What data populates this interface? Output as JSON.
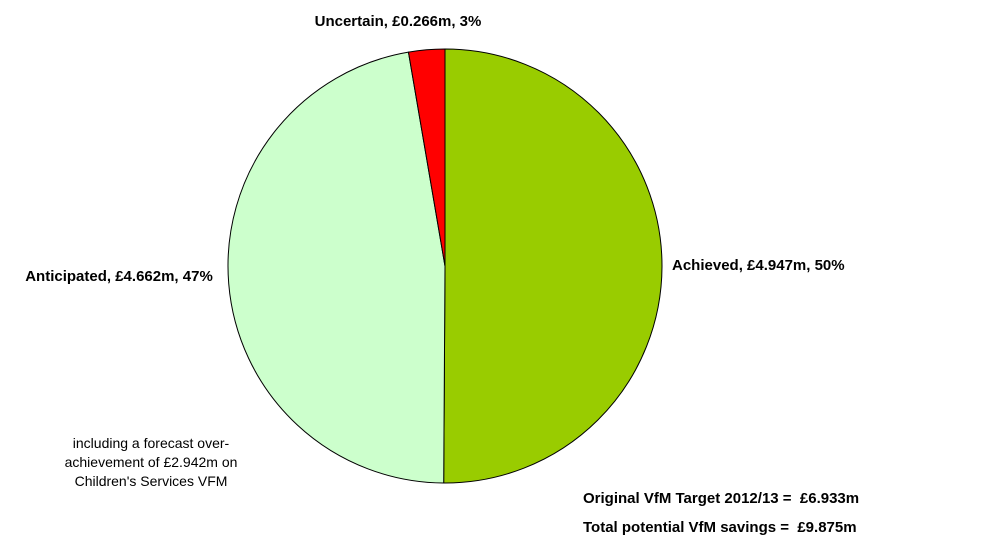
{
  "chart_data": {
    "type": "pie",
    "labels": [
      "Achieved, £4.947m, 50%",
      "Anticipated, £4.662m, 47%",
      "Uncertain, £0.266m, 3%"
    ],
    "values": [
      4.947,
      4.662,
      0.266
    ],
    "colors": [
      "#99cc00",
      "#ccffcc",
      "#ff0000"
    ],
    "annotation_lines": [
      "including a forecast over-",
      "achievement of £2.942m on",
      "Children's Services VFM"
    ],
    "footer_lines": [
      "Original VfM Target 2012/13 =  £6.933m",
      "Total potential VfM savings =  £9.875m"
    ]
  }
}
